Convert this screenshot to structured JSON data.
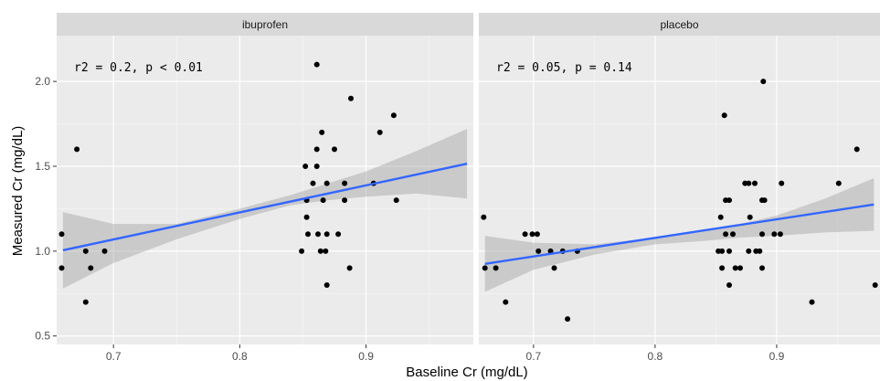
{
  "chart_data": {
    "type": "scatter",
    "xlabel": "Baseline Cr (mg/dL)",
    "ylabel": "Measured Cr (mg/dL)",
    "xlim": [
      0.655,
      0.985
    ],
    "ylim": [
      0.45,
      2.27
    ],
    "x_ticks": [
      0.7,
      0.8,
      0.9
    ],
    "x_minor": [
      0.75,
      0.85,
      0.95
    ],
    "y_ticks": [
      0.5,
      1.0,
      1.5,
      2.0
    ],
    "y_tick_labels": [
      "0.5",
      "1.0",
      "1.5",
      "2.0"
    ],
    "x_tick_labels": [
      "0.7",
      "0.8",
      "0.9"
    ],
    "y_minor": [
      0.75,
      1.25,
      1.75
    ],
    "grid": true,
    "background": "#ebebeb",
    "strip_color": "#d9d9d9",
    "point_color": "#000000",
    "line_color": "#3366ff",
    "ribbon_color": "#999999",
    "panels": [
      {
        "name": "ibuprofen",
        "annotation": "r2 = 0.2, p < 0.01",
        "fit": {
          "x": [
            0.66,
            0.98
          ],
          "y": [
            1.005,
            1.515
          ]
        },
        "ribbon": {
          "x": [
            0.66,
            0.7,
            0.75,
            0.8,
            0.84,
            0.87,
            0.9,
            0.94,
            0.98
          ],
          "lower": [
            0.78,
            0.93,
            1.07,
            1.19,
            1.27,
            1.3,
            1.32,
            1.34,
            1.31
          ],
          "upper": [
            1.23,
            1.16,
            1.16,
            1.25,
            1.33,
            1.4,
            1.47,
            1.59,
            1.72
          ]
        },
        "points": [
          {
            "x": 0.659,
            "y": 1.1
          },
          {
            "x": 0.659,
            "y": 0.9
          },
          {
            "x": 0.671,
            "y": 1.6
          },
          {
            "x": 0.678,
            "y": 1.0
          },
          {
            "x": 0.678,
            "y": 0.7
          },
          {
            "x": 0.682,
            "y": 0.9
          },
          {
            "x": 0.693,
            "y": 1.0
          },
          {
            "x": 0.849,
            "y": 1.0
          },
          {
            "x": 0.852,
            "y": 1.5
          },
          {
            "x": 0.853,
            "y": 1.3
          },
          {
            "x": 0.853,
            "y": 1.2
          },
          {
            "x": 0.854,
            "y": 1.1
          },
          {
            "x": 0.858,
            "y": 1.4
          },
          {
            "x": 0.861,
            "y": 2.1
          },
          {
            "x": 0.861,
            "y": 1.6
          },
          {
            "x": 0.861,
            "y": 1.5
          },
          {
            "x": 0.862,
            "y": 1.1
          },
          {
            "x": 0.864,
            "y": 1.0
          },
          {
            "x": 0.865,
            "y": 1.7
          },
          {
            "x": 0.866,
            "y": 1.3
          },
          {
            "x": 0.868,
            "y": 1.0
          },
          {
            "x": 0.869,
            "y": 1.4
          },
          {
            "x": 0.869,
            "y": 1.1
          },
          {
            "x": 0.869,
            "y": 0.8
          },
          {
            "x": 0.875,
            "y": 1.6
          },
          {
            "x": 0.878,
            "y": 1.1
          },
          {
            "x": 0.883,
            "y": 1.4
          },
          {
            "x": 0.883,
            "y": 1.3
          },
          {
            "x": 0.887,
            "y": 0.9
          },
          {
            "x": 0.888,
            "y": 1.9
          },
          {
            "x": 0.906,
            "y": 1.4
          },
          {
            "x": 0.911,
            "y": 1.7
          },
          {
            "x": 0.922,
            "y": 1.8
          },
          {
            "x": 0.924,
            "y": 1.3
          }
        ]
      },
      {
        "name": "placebo",
        "annotation": "r2 = 0.05, p = 0.14",
        "fit": {
          "x": [
            0.66,
            0.98
          ],
          "y": [
            0.925,
            1.275
          ]
        },
        "ribbon": {
          "x": [
            0.66,
            0.7,
            0.75,
            0.8,
            0.84,
            0.87,
            0.9,
            0.94,
            0.98
          ],
          "lower": [
            0.76,
            0.89,
            0.98,
            1.04,
            1.06,
            1.08,
            1.09,
            1.11,
            1.12
          ],
          "upper": [
            1.09,
            1.05,
            1.04,
            1.08,
            1.12,
            1.16,
            1.21,
            1.31,
            1.43
          ]
        },
        "points": [
          {
            "x": 0.659,
            "y": 1.2
          },
          {
            "x": 0.66,
            "y": 0.9
          },
          {
            "x": 0.669,
            "y": 0.9
          },
          {
            "x": 0.677,
            "y": 0.7
          },
          {
            "x": 0.693,
            "y": 1.1
          },
          {
            "x": 0.699,
            "y": 1.1
          },
          {
            "x": 0.703,
            "y": 1.1
          },
          {
            "x": 0.704,
            "y": 1.0
          },
          {
            "x": 0.714,
            "y": 1.0
          },
          {
            "x": 0.717,
            "y": 0.9
          },
          {
            "x": 0.724,
            "y": 1.0
          },
          {
            "x": 0.728,
            "y": 0.6
          },
          {
            "x": 0.736,
            "y": 1.0
          },
          {
            "x": 0.852,
            "y": 1.0
          },
          {
            "x": 0.854,
            "y": 1.2
          },
          {
            "x": 0.855,
            "y": 1.0
          },
          {
            "x": 0.855,
            "y": 0.9
          },
          {
            "x": 0.857,
            "y": 1.8
          },
          {
            "x": 0.858,
            "y": 1.3
          },
          {
            "x": 0.858,
            "y": 1.1
          },
          {
            "x": 0.861,
            "y": 1.3
          },
          {
            "x": 0.861,
            "y": 1.0
          },
          {
            "x": 0.861,
            "y": 0.8
          },
          {
            "x": 0.864,
            "y": 1.1
          },
          {
            "x": 0.866,
            "y": 0.9
          },
          {
            "x": 0.87,
            "y": 0.9
          },
          {
            "x": 0.874,
            "y": 1.4
          },
          {
            "x": 0.877,
            "y": 1.0
          },
          {
            "x": 0.877,
            "y": 1.4
          },
          {
            "x": 0.878,
            "y": 1.2
          },
          {
            "x": 0.882,
            "y": 1.4
          },
          {
            "x": 0.883,
            "y": 1.0
          },
          {
            "x": 0.886,
            "y": 1.0
          },
          {
            "x": 0.888,
            "y": 1.3
          },
          {
            "x": 0.888,
            "y": 1.1
          },
          {
            "x": 0.888,
            "y": 0.9
          },
          {
            "x": 0.889,
            "y": 2.0
          },
          {
            "x": 0.89,
            "y": 1.3
          },
          {
            "x": 0.898,
            "y": 1.1
          },
          {
            "x": 0.903,
            "y": 1.1
          },
          {
            "x": 0.904,
            "y": 1.4
          },
          {
            "x": 0.929,
            "y": 0.7
          },
          {
            "x": 0.951,
            "y": 1.4
          },
          {
            "x": 0.966,
            "y": 1.6
          },
          {
            "x": 0.981,
            "y": 0.8
          }
        ]
      }
    ]
  }
}
